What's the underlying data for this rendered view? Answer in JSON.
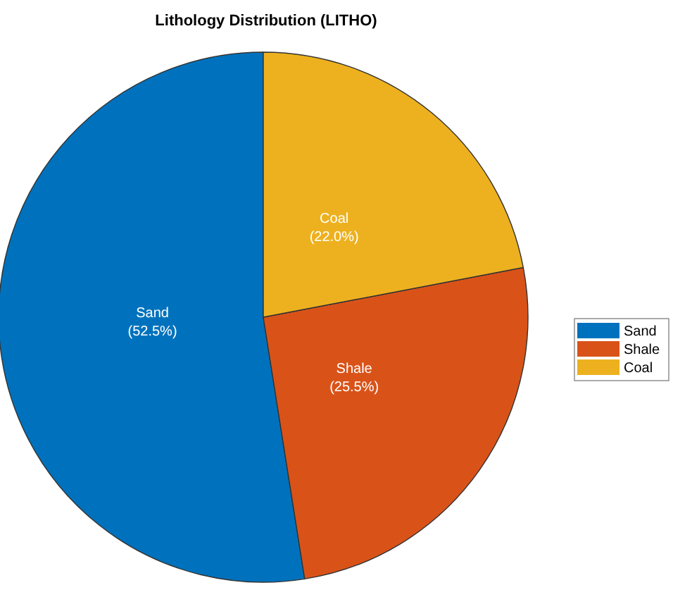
{
  "chart_data": {
    "type": "pie",
    "title": "Lithology Distribution (LITHO)",
    "categories": [
      "Sand",
      "Shale",
      "Coal"
    ],
    "values": [
      52.5,
      25.5,
      22.0
    ],
    "colors": [
      "#0072bd",
      "#d95319",
      "#edb120"
    ],
    "value_labels": [
      "(52.5%)",
      "(25.5%)",
      "(22.0%)"
    ],
    "legend": "right"
  }
}
